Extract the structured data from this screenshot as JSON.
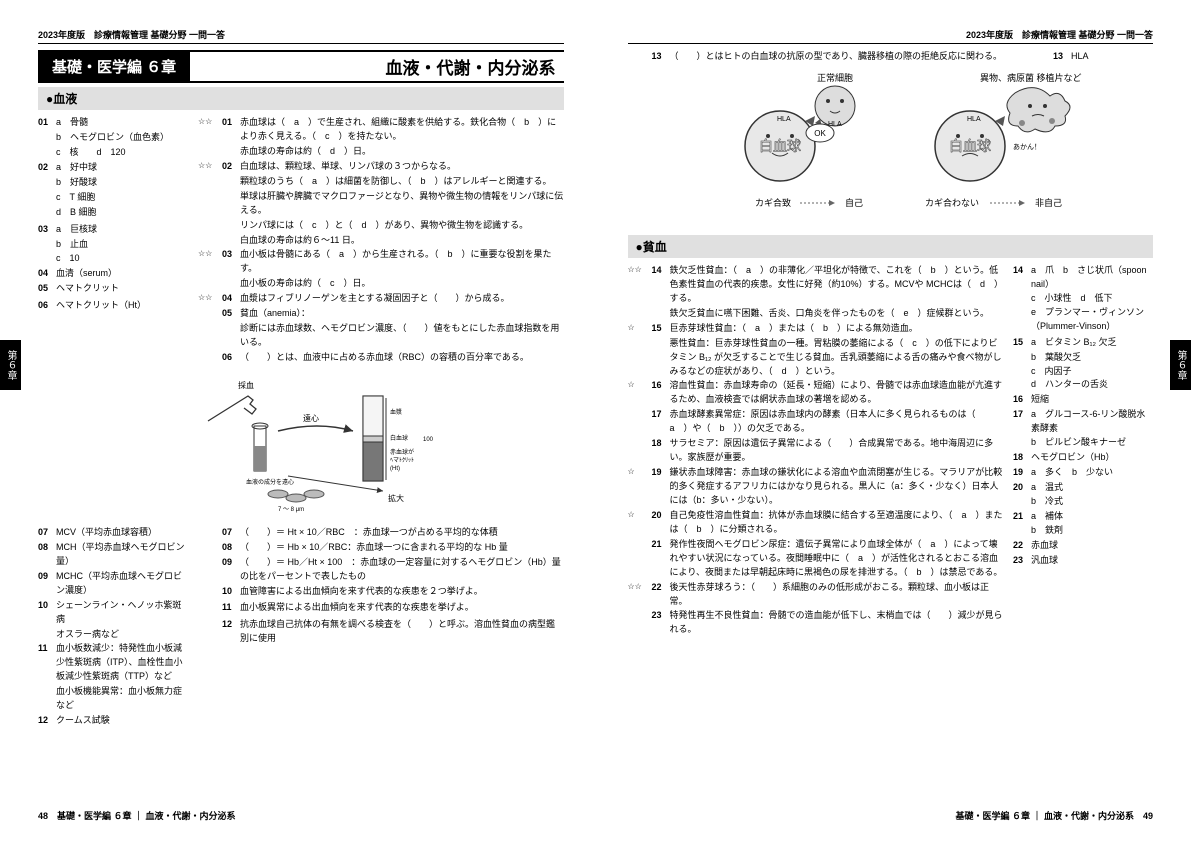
{
  "pub": "2023年度版　診療情報管理 基礎分野 一問一答",
  "chapterLabel": "基礎・医学編 ６章",
  "chapterTitle": "血液・代謝・内分泌系",
  "sectionBlood": "●血液",
  "sectionAnemia": "●貧血",
  "sideTab": "第６章",
  "footerLeft": "48　基礎・医学編 ６章 ｜ 血液・代謝・内分泌系",
  "footerRight": "基礎・医学編 ６章 ｜ 血液・代謝・内分泌系　49",
  "leftAnswers": [
    {
      "n": "01",
      "t": "a　骨髄"
    },
    {
      "n": "",
      "t": "b　ヘモグロビン（血色素）"
    },
    {
      "n": "",
      "t": "c　核　　d　120"
    },
    {
      "n": "02",
      "t": "a　好中球"
    },
    {
      "n": "",
      "t": "b　好酸球"
    },
    {
      "n": "",
      "t": "c　T 細胞"
    },
    {
      "n": "",
      "t": "d　B 細胞"
    },
    {
      "n": "",
      "t": ""
    },
    {
      "n": "",
      "t": ""
    },
    {
      "n": "03",
      "t": "a　巨核球"
    },
    {
      "n": "",
      "t": "b　止血"
    },
    {
      "n": "",
      "t": "c　10"
    },
    {
      "n": "04",
      "t": "血清（serum）"
    },
    {
      "n": "05",
      "t": "ヘマトクリット"
    },
    {
      "n": "",
      "t": ""
    },
    {
      "n": "",
      "t": ""
    },
    {
      "n": "06",
      "t": "ヘマトクリット（Ht）"
    }
  ],
  "leftQuestions": [
    {
      "s": "☆☆",
      "n": "01",
      "t": "赤血球は（　a　）で生産され、組織に酸素を供給する。鉄化合物（　b　）により赤く見える。（　c　）を持たない。"
    },
    {
      "s": "",
      "n": "",
      "t": "赤血球の寿命は約（　d　）日。"
    },
    {
      "s": "☆☆",
      "n": "02",
      "t": "白血球は、顆粒球、単球、リンパ球の３つからなる。"
    },
    {
      "s": "",
      "n": "",
      "t": "顆粒球のうち（　a　）は細菌を防御し、（　b　）はアレルギーと関連する。"
    },
    {
      "s": "",
      "n": "",
      "t": "単球は肝臓や脾臓でマクロファージとなり、異物や微生物の情報をリンパ球に伝える。"
    },
    {
      "s": "",
      "n": "",
      "t": "リンパ球には（　c　）と（　d　）があり、異物や微生物を認識する。"
    },
    {
      "s": "",
      "n": "",
      "t": "白血球の寿命は約６〜11 日。"
    },
    {
      "s": "☆☆",
      "n": "03",
      "t": "血小板は骨髄にある（　a　）から生産される。（　b　）に重要な役割を果たす。"
    },
    {
      "s": "",
      "n": "",
      "t": "血小板の寿命は約（　c　）日。"
    },
    {
      "s": "☆☆",
      "n": "04",
      "t": "血漿はフィブリノーゲンを主とする凝固因子と（　　）から成る。"
    },
    {
      "s": "",
      "n": "05",
      "t": "貧血（anemia）："
    },
    {
      "s": "",
      "n": "",
      "t": "診断には赤血球数、ヘモグロビン濃度、（　　）値をもとにした赤血球指数を用いる。"
    },
    {
      "s": "",
      "n": "06",
      "t": "（　　）とは、血液中に占める赤血球（RBC）の容積の百分率である。"
    }
  ],
  "leftAnswers2": [
    {
      "n": "07",
      "t": "MCV（平均赤血球容積）"
    },
    {
      "n": "08",
      "t": "MCH（平均赤血球ヘモグロビン量）"
    },
    {
      "n": "09",
      "t": "MCHC（平均赤血球ヘモグロビン濃度）"
    },
    {
      "n": "10",
      "t": "シェーンライン・ヘノッホ紫斑病"
    },
    {
      "n": "",
      "t": "オスラー病など"
    },
    {
      "n": "11",
      "t": "血小板数減少：特発性血小板減少性紫斑病（ITP）、血栓性血小板減少性紫斑病（TTP）など"
    },
    {
      "n": "",
      "t": "血小板機能異常：血小板無力症など"
    },
    {
      "n": "12",
      "t": "クームス試験"
    }
  ],
  "leftQuestions2": [
    {
      "s": "",
      "n": "07",
      "t": "（　　）＝ Ht × 10／RBC　：赤血球一つが占める平均的な体積"
    },
    {
      "s": "",
      "n": "08",
      "t": "（　　）＝ Hb × 10／RBC：赤血球一つに含まれる平均的な Hb 量"
    },
    {
      "s": "",
      "n": "09",
      "t": "（　　）＝ Hb／Ht × 100　：赤血球の一定容量に対するヘモグロビン（Hb）量の比をパーセントで表したもの"
    },
    {
      "s": "",
      "n": "10",
      "t": "血管障害による出血傾向を来す代表的な疾患を２つ挙げよ。"
    },
    {
      "s": "",
      "n": "",
      "t": ""
    },
    {
      "s": "",
      "n": "11",
      "t": "血小板異常による出血傾向を来す代表的な疾患を挙げよ。"
    },
    {
      "s": "",
      "n": "",
      "t": ""
    },
    {
      "s": "",
      "n": "",
      "t": ""
    },
    {
      "s": "",
      "n": "12",
      "t": "抗赤血球自己抗体の有無を調べる検査を（　　）と呼ぶ。溶血性貧血の病型鑑別に使用"
    }
  ],
  "rightTop": [
    {
      "s": "",
      "n": "13",
      "t": "（　　）とはヒトの白血球の抗原の型であり、臓器移植の際の拒絶反応に関わる。",
      "a": "HLA"
    }
  ],
  "cellLabels": {
    "normal": "正常細胞",
    "foreign": "異物、病原菌\n移植片など",
    "hla": "HLA",
    "wbc1": "白血球",
    "wbc2": "白血球",
    "ok": "OK",
    "no": "あかん！",
    "match": "カギ合致",
    "self": "自己",
    "nomatch": "カギ合わない",
    "nonself": "非自己"
  },
  "rightQuestions": [
    {
      "s": "☆☆",
      "n": "14",
      "t": "鉄欠乏性貧血：（　a　）の非薄化／平坦化が特徴で、これを（　b　）という。低色素性貧血の代表的疾患。女性に好発（約10%）する。MCVや MCHCは（　d　）する。",
      "a": "a　爪　b　さじ状爪（spoon nail）\nc　小球性　d　低下\ne　プランマー・ヴィンソン\n（Plummer-Vinson）"
    },
    {
      "s": "",
      "n": "",
      "t": "鉄欠乏貧血に嚥下困難、舌炎、口角炎を伴ったものを（　e　）症候群という。",
      "a": ""
    },
    {
      "s": "☆",
      "n": "15",
      "t": "巨赤芽球性貧血：（　a　）または（　b　）による無効造血。",
      "a": "a　ビタミン B₁₂ 欠乏"
    },
    {
      "s": "",
      "n": "",
      "t": "悪性貧血：巨赤芽球性貧血の一種。胃粘膜の萎縮による（　c　）の低下によりビタミン B₁₂ が欠乏することで生じる貧血。舌乳頭萎縮による舌の痛みや食べ物がしみるなどの症状があり、（　d　）という。",
      "a": "b　葉酸欠乏\nc　内因子\nd　ハンターの舌炎"
    },
    {
      "s": "☆",
      "n": "16",
      "t": "溶血性貧血：赤血球寿命の（延長・短縮）により、骨髄では赤血球造血能が亢進するため、血液検査では網状赤血球の著増を認める。",
      "a": "短縮"
    },
    {
      "s": "",
      "n": "17",
      "t": "赤血球酵素異常症：原因は赤血球内の酵素（日本人に多く見られるものは（　a　）や（　b　））の欠乏である。",
      "a": "a　グルコース-6-リン酸脱水素酵素\nb　ピルビン酸キナーゼ"
    },
    {
      "s": "",
      "n": "18",
      "t": "サラセミア：原因は遺伝子異常による（　　）合成異常である。地中海周辺に多い。家族歴が重要。",
      "a": "ヘモグロビン（Hb）"
    },
    {
      "s": "☆",
      "n": "19",
      "t": "鎌状赤血球障害：赤血球の鎌状化による溶血や血流閉塞が生じる。マラリアが比較的多く発症するアフリカにはかなり見られる。黒人に（a：多く・少なく）日本人には（b：多い・少ない）。",
      "a": "a　多く　b　少ない"
    },
    {
      "s": "☆",
      "n": "20",
      "t": "自己免疫性溶血性貧血：抗体が赤血球膜に結合する至適温度により、（　a　）または（　b　）に分類される。",
      "a": "a　温式\nb　冷式"
    },
    {
      "s": "",
      "n": "21",
      "t": "発作性夜間ヘモグロビン尿症：遺伝子異常により血球全体が（　a　）によって壊れやすい状況になっている。夜間睡眠中に（　a　）が活性化されるとおこる溶血により、夜間または早朝起床時に黒褐色の尿を排泄する。（　b　）は禁忌である。",
      "a": "a　補体\nb　鉄剤"
    },
    {
      "s": "☆☆",
      "n": "22",
      "t": "後天性赤芽球ろう：（　　）系細胞のみの低形成がおこる。顆粒球、血小板は正常。",
      "a": "赤血球"
    },
    {
      "s": "",
      "n": "23",
      "t": "特発性再生不良性貧血：骨髄での造血能が低下し、末梢血では（　　）減少が見られる。",
      "a": "汎血球"
    }
  ]
}
